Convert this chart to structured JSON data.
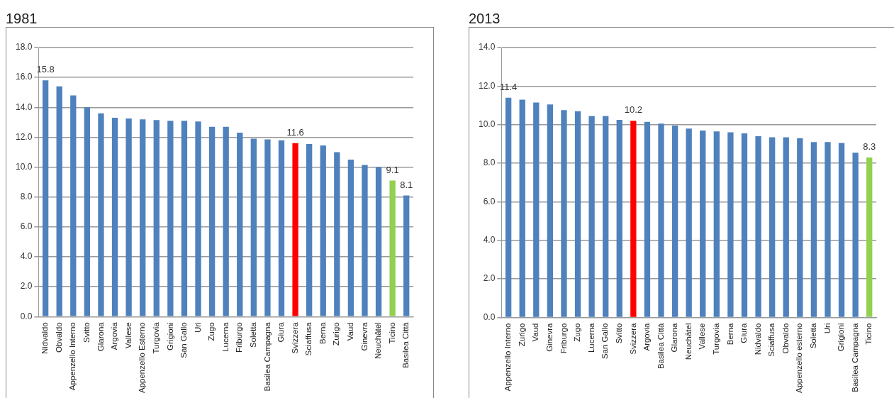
{
  "chart_data": [
    {
      "type": "bar",
      "title": "1981",
      "categories": [
        "Nidvaldo",
        "Obvaldo",
        "Appenzello Interno",
        "Svitto",
        "Glarona",
        "Argovia",
        "Vallese",
        "Appenzello Esterno",
        "Turgovia",
        "Grigioni",
        "San Gallo",
        "Uri",
        "Zugo",
        "Lucerna",
        "Friburgo",
        "Soletta",
        "Basilea Campagna",
        "Giura",
        "Svizzera",
        "Sciaffusa",
        "Berna",
        "Zurigo",
        "Vaud",
        "Ginevra",
        "Neuchâtel",
        "Ticino",
        "Basilea Città"
      ],
      "values": [
        15.8,
        15.4,
        14.8,
        14.0,
        13.6,
        13.3,
        13.25,
        13.2,
        13.15,
        13.1,
        13.1,
        13.05,
        12.7,
        12.7,
        12.3,
        11.9,
        11.85,
        11.8,
        11.6,
        11.55,
        11.45,
        11.0,
        10.5,
        10.15,
        10.0,
        9.1,
        8.1
      ],
      "value_labels": [
        "15.8",
        null,
        null,
        null,
        null,
        null,
        null,
        null,
        null,
        null,
        null,
        null,
        null,
        null,
        null,
        null,
        null,
        null,
        "11.6",
        null,
        null,
        null,
        null,
        null,
        null,
        "9.1",
        "8.1"
      ],
      "colors": [
        "#4f81bd",
        "#4f81bd",
        "#4f81bd",
        "#4f81bd",
        "#4f81bd",
        "#4f81bd",
        "#4f81bd",
        "#4f81bd",
        "#4f81bd",
        "#4f81bd",
        "#4f81bd",
        "#4f81bd",
        "#4f81bd",
        "#4f81bd",
        "#4f81bd",
        "#4f81bd",
        "#4f81bd",
        "#4f81bd",
        "#ff0000",
        "#4f81bd",
        "#4f81bd",
        "#4f81bd",
        "#4f81bd",
        "#4f81bd",
        "#4f81bd",
        "#92d050",
        "#4f81bd"
      ],
      "ylim": [
        0,
        18
      ],
      "yticks": [
        {
          "value": 0,
          "label": "0.0"
        },
        {
          "value": 2,
          "label": "2.0"
        },
        {
          "value": 4,
          "label": "4.0"
        },
        {
          "value": 6,
          "label": "6.0"
        },
        {
          "value": 8,
          "label": "8.0"
        },
        {
          "value": 10,
          "label": "10.0"
        },
        {
          "value": 12,
          "label": "12.0"
        },
        {
          "value": 14,
          "label": "14.0"
        },
        {
          "value": 16,
          "label": "16.0"
        },
        {
          "value": 18,
          "label": "18.0"
        }
      ],
      "grid": "y",
      "legend": false
    },
    {
      "type": "bar",
      "title": "2013",
      "categories": [
        "Appenzello Interno",
        "Zurigo",
        "Vaud",
        "Ginevra",
        "Friburgo",
        "Zugo",
        "Lucerna",
        "San Gallo",
        "Svitto",
        "Svizzera",
        "Argovia",
        "Basilea Città",
        "Glarona",
        "Neuchâtel",
        "Vallese",
        "Turgovia",
        "Berna",
        "Giura",
        "Nidvaldo",
        "Sciaffusa",
        "Obvaldo",
        "Appenzello esterno",
        "Soletta",
        "Uri",
        "Grigioni",
        "Basilea Campagna",
        "Ticino"
      ],
      "values": [
        11.4,
        11.3,
        11.15,
        11.05,
        10.75,
        10.7,
        10.45,
        10.45,
        10.25,
        10.2,
        10.15,
        10.05,
        9.95,
        9.8,
        9.7,
        9.65,
        9.6,
        9.55,
        9.4,
        9.35,
        9.35,
        9.3,
        9.1,
        9.1,
        9.05,
        8.55,
        8.3
      ],
      "value_labels": [
        "11.4",
        null,
        null,
        null,
        null,
        null,
        null,
        null,
        null,
        "10.2",
        null,
        null,
        null,
        null,
        null,
        null,
        null,
        null,
        null,
        null,
        null,
        null,
        null,
        null,
        null,
        null,
        "8.3"
      ],
      "colors": [
        "#4f81bd",
        "#4f81bd",
        "#4f81bd",
        "#4f81bd",
        "#4f81bd",
        "#4f81bd",
        "#4f81bd",
        "#4f81bd",
        "#4f81bd",
        "#ff0000",
        "#4f81bd",
        "#4f81bd",
        "#4f81bd",
        "#4f81bd",
        "#4f81bd",
        "#4f81bd",
        "#4f81bd",
        "#4f81bd",
        "#4f81bd",
        "#4f81bd",
        "#4f81bd",
        "#4f81bd",
        "#4f81bd",
        "#4f81bd",
        "#4f81bd",
        "#4f81bd",
        "#92d050"
      ],
      "ylim": [
        0,
        14
      ],
      "yticks": [
        {
          "value": 0,
          "label": "0.0"
        },
        {
          "value": 2,
          "label": "2.0"
        },
        {
          "value": 4,
          "label": "4.0"
        },
        {
          "value": 6,
          "label": "6.0"
        },
        {
          "value": 8,
          "label": "8.0"
        },
        {
          "value": 10,
          "label": "10.0"
        },
        {
          "value": 12,
          "label": "12.0"
        },
        {
          "value": 14,
          "label": "14.0"
        }
      ],
      "grid": "y",
      "legend": false
    }
  ]
}
